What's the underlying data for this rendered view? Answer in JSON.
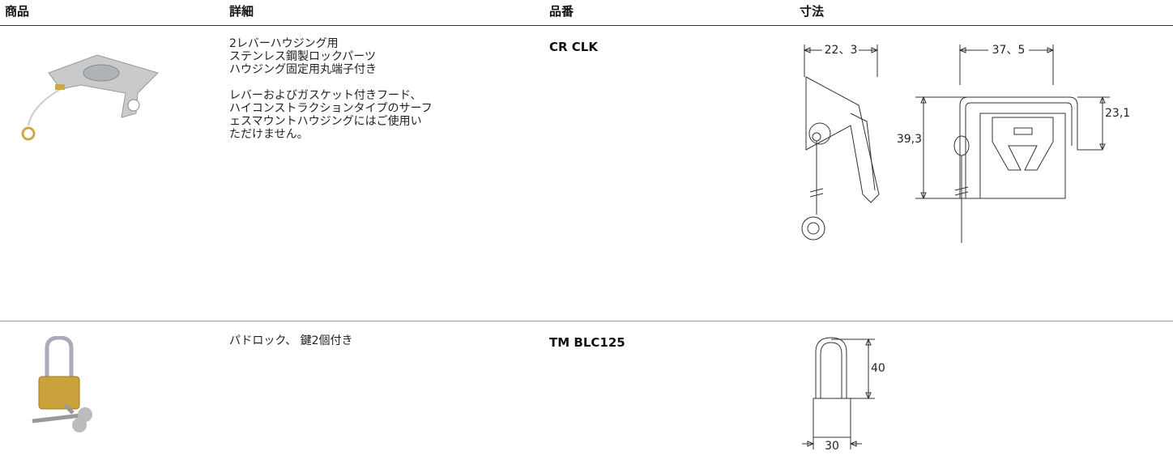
{
  "header": {
    "columns": [
      "商品",
      "詳細",
      "品番",
      "寸法"
    ]
  },
  "table": {
    "rows": [
      {
        "details": [
          [
            "2レバーハウジング用",
            "ステンレス鋼製ロックパーツ",
            "ハウジング固定用丸端子付き"
          ],
          [
            "レバーおよびガスケット付きフード、",
            "ハイコンストラクションタイプのサーフ",
            "ェスマウントハウジングにはご使用い",
            "ただけません。"
          ]
        ],
        "part_number": "CR CLK",
        "dimensions": [
          "22、3",
          "37、5",
          "23,1",
          "39,3"
        ]
      },
      {
        "details": [
          [
            "パドロック、 鍵2個付き"
          ]
        ],
        "part_number": "TM BLC125",
        "dimensions": [
          "40",
          "30"
        ]
      }
    ]
  }
}
